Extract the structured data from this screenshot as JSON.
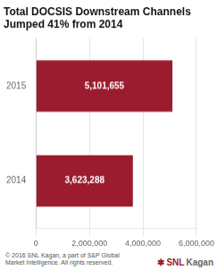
{
  "chart_data": {
    "type": "bar",
    "orientation": "horizontal",
    "title": "Total DOCSIS Downstream Channels\nJumped 41% from 2014",
    "categories": [
      "2015",
      "2014"
    ],
    "values": [
      5101655,
      3623288
    ],
    "value_labels": [
      "5,101,655",
      "3,623,288"
    ],
    "data_labels": true,
    "color": "#9b1c2e",
    "xlim": [
      0,
      6000000
    ],
    "xticks": [
      0,
      {
        "value": 2000000,
        "label": "2,000,000"
      },
      {
        "value": 4000000,
        "label": "4,000,000"
      },
      {
        "value": 6000000,
        "label": "6,000,000"
      }
    ],
    "grid": true,
    "footer": "© 2016 SNL Kagan, a part of S&P Global\nMarket Intelligence. All rights reserved.",
    "logo": [
      {
        "text": "✱",
        "color": "#9b1c2e"
      },
      {
        "text": "SNL",
        "color": "#9b1c2e"
      },
      {
        "text": "Kagan",
        "color": "#666666"
      }
    ]
  }
}
